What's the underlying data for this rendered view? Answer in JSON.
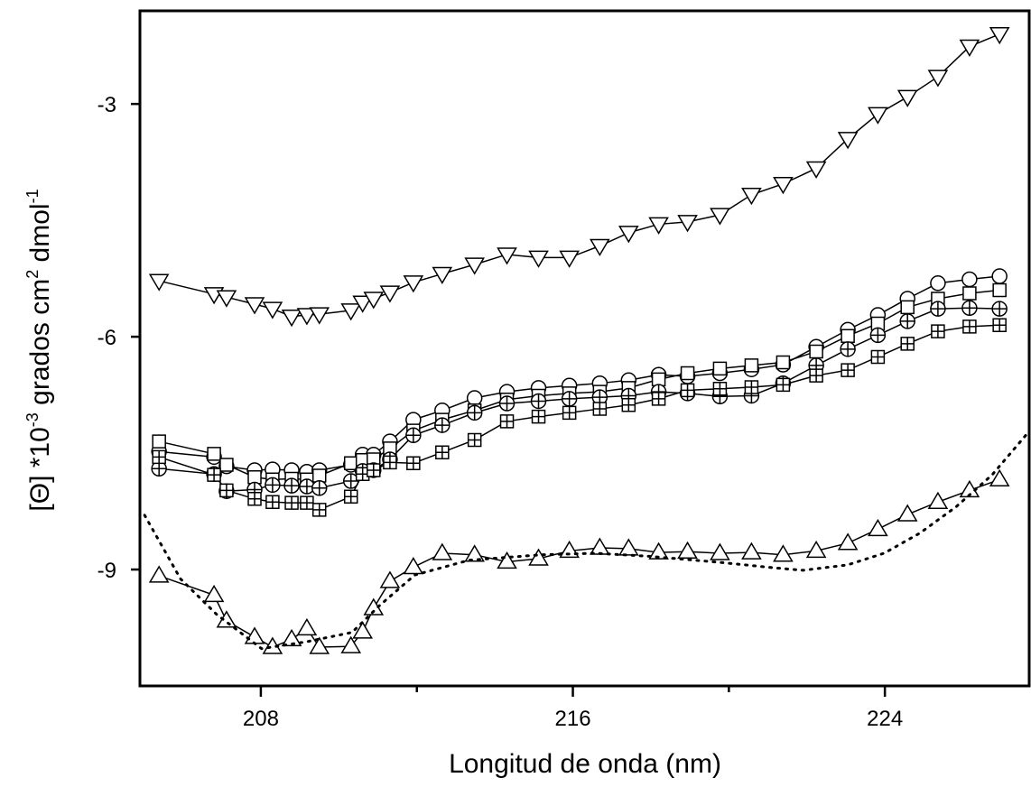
{
  "chart_data": {
    "type": "line",
    "xlabel": "Longitud de onda (nm)",
    "ylabel": [
      "[Θ] *10",
      "-3",
      " grados cm",
      "2",
      " dmol",
      "-1"
    ],
    "xlim": [
      204.9,
      227.7
    ],
    "ylim": [
      -10.5,
      -1.8
    ],
    "xticks": [
      208,
      216,
      224
    ],
    "xminorticks": [
      212,
      220
    ],
    "yticks": [
      -3,
      -6,
      -9
    ],
    "x": [
      205.39,
      206.8,
      207.12,
      207.84,
      208.3,
      208.79,
      209.18,
      209.5,
      210.31,
      210.61,
      210.89,
      211.31,
      211.91,
      212.65,
      213.48,
      214.31,
      215.12,
      215.91,
      216.69,
      217.43,
      218.2,
      218.94,
      219.77,
      220.58,
      221.39,
      222.24,
      223.05,
      223.82,
      224.58,
      225.36,
      226.17,
      226.94
    ],
    "series": [
      {
        "marker": "triangle-down",
        "color": "#000000",
        "values": [
          -5.28,
          -5.45,
          -5.49,
          -5.58,
          -5.64,
          -5.74,
          -5.72,
          -5.71,
          -5.66,
          -5.56,
          -5.51,
          -5.43,
          -5.3,
          -5.19,
          -5.07,
          -4.94,
          -4.98,
          -4.98,
          -4.83,
          -4.66,
          -4.55,
          -4.52,
          -4.43,
          -4.17,
          -4.03,
          -3.83,
          -3.45,
          -3.13,
          -2.91,
          -2.65,
          -2.26,
          -2.1
        ]
      },
      {
        "marker": "circle",
        "color": "#000000",
        "values": [
          -7.48,
          -7.55,
          -7.67,
          -7.72,
          -7.71,
          -7.72,
          -7.74,
          -7.72,
          -7.65,
          -7.52,
          -7.52,
          -7.35,
          -7.07,
          -6.95,
          -6.79,
          -6.71,
          -6.66,
          -6.63,
          -6.6,
          -6.56,
          -6.49,
          -6.51,
          -6.47,
          -6.42,
          -6.36,
          -6.13,
          -5.91,
          -5.72,
          -5.51,
          -5.31,
          -5.26,
          -5.22
        ]
      },
      {
        "marker": "square",
        "color": "#000000",
        "values": [
          -7.35,
          -7.51,
          -7.65,
          -7.81,
          -7.84,
          -7.83,
          -7.84,
          -7.79,
          -7.63,
          -7.59,
          -7.58,
          -7.44,
          -7.21,
          -7.07,
          -6.95,
          -6.81,
          -6.76,
          -6.73,
          -6.71,
          -6.66,
          -6.55,
          -6.47,
          -6.41,
          -6.37,
          -6.33,
          -6.19,
          -5.99,
          -5.83,
          -5.62,
          -5.51,
          -5.44,
          -5.4
        ]
      },
      {
        "marker": "circle-plus",
        "color": "#000000",
        "values": [
          -7.7,
          -7.77,
          -7.99,
          -7.97,
          -7.91,
          -7.92,
          -7.93,
          -7.95,
          -7.86,
          -7.73,
          -7.72,
          -7.58,
          -7.27,
          -7.14,
          -6.98,
          -6.86,
          -6.83,
          -6.8,
          -6.78,
          -6.76,
          -6.71,
          -6.73,
          -6.77,
          -6.76,
          -6.6,
          -6.37,
          -6.16,
          -5.98,
          -5.8,
          -5.64,
          -5.63,
          -5.64
        ]
      },
      {
        "marker": "square-plus",
        "color": "#000000",
        "values": [
          -7.55,
          -7.78,
          -7.98,
          -8.09,
          -8.13,
          -8.14,
          -8.14,
          -8.23,
          -8.06,
          -7.77,
          -7.72,
          -7.62,
          -7.63,
          -7.49,
          -7.33,
          -7.09,
          -7.03,
          -6.98,
          -6.93,
          -6.88,
          -6.8,
          -6.69,
          -6.67,
          -6.65,
          -6.62,
          -6.5,
          -6.43,
          -6.26,
          -6.09,
          -5.93,
          -5.87,
          -5.85
        ]
      },
      {
        "marker": "triangle-up",
        "color": "#000000",
        "values": [
          -9.08,
          -9.33,
          -9.66,
          -9.87,
          -10.0,
          -9.9,
          -9.76,
          -10.0,
          -9.99,
          -9.8,
          -9.5,
          -9.15,
          -8.97,
          -8.79,
          -8.81,
          -8.9,
          -8.86,
          -8.76,
          -8.72,
          -8.73,
          -8.78,
          -8.77,
          -8.79,
          -8.78,
          -8.81,
          -8.76,
          -8.66,
          -8.48,
          -8.29,
          -8.13,
          -7.98,
          -7.84
        ]
      },
      {
        "marker": "none",
        "style": "dotted",
        "color": "#000000",
        "x": [
          205.02,
          205.94,
          206.87,
          208.02,
          209.18,
          210.34,
          211.03,
          211.95,
          213.34,
          215.19,
          216.58,
          217.97,
          219.82,
          221.2,
          221.9,
          223.05,
          223.98,
          224.9,
          225.83,
          226.75,
          227.68
        ],
        "values": [
          -8.3,
          -9.12,
          -9.58,
          -10.02,
          -9.93,
          -9.81,
          -9.47,
          -9.07,
          -8.88,
          -8.81,
          -8.79,
          -8.83,
          -8.91,
          -8.98,
          -9.01,
          -8.94,
          -8.79,
          -8.53,
          -8.19,
          -7.78,
          -7.23
        ]
      }
    ]
  }
}
